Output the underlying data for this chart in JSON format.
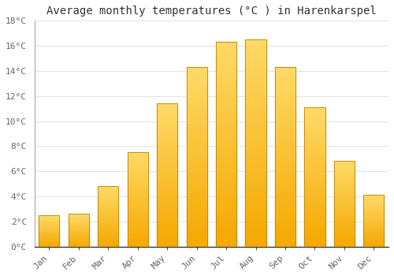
{
  "months": [
    "Jan",
    "Feb",
    "Mar",
    "Apr",
    "May",
    "Jun",
    "Jul",
    "Aug",
    "Sep",
    "Oct",
    "Nov",
    "Dec"
  ],
  "values": [
    2.5,
    2.6,
    4.8,
    7.5,
    11.4,
    14.3,
    16.3,
    16.5,
    14.3,
    11.1,
    6.8,
    4.1
  ],
  "bar_color_bottom": "#F5A800",
  "bar_color_top": "#FFD966",
  "bar_edge_color": "#B8860B",
  "background_color": "#FFFFFF",
  "grid_color": "#DDDDDD",
  "title": "Average monthly temperatures (°C ) in Harenkarspel",
  "ylim": [
    0,
    18
  ],
  "yticks": [
    0,
    2,
    4,
    6,
    8,
    10,
    12,
    14,
    16,
    18
  ],
  "ytick_labels": [
    "0°C",
    "2°C",
    "4°C",
    "6°C",
    "8°C",
    "10°C",
    "12°C",
    "14°C",
    "16°C",
    "18°C"
  ],
  "title_fontsize": 10,
  "tick_fontsize": 8,
  "title_color": "#333333",
  "tick_color": "#666666",
  "bar_width": 0.7,
  "n_gradient_steps": 50
}
